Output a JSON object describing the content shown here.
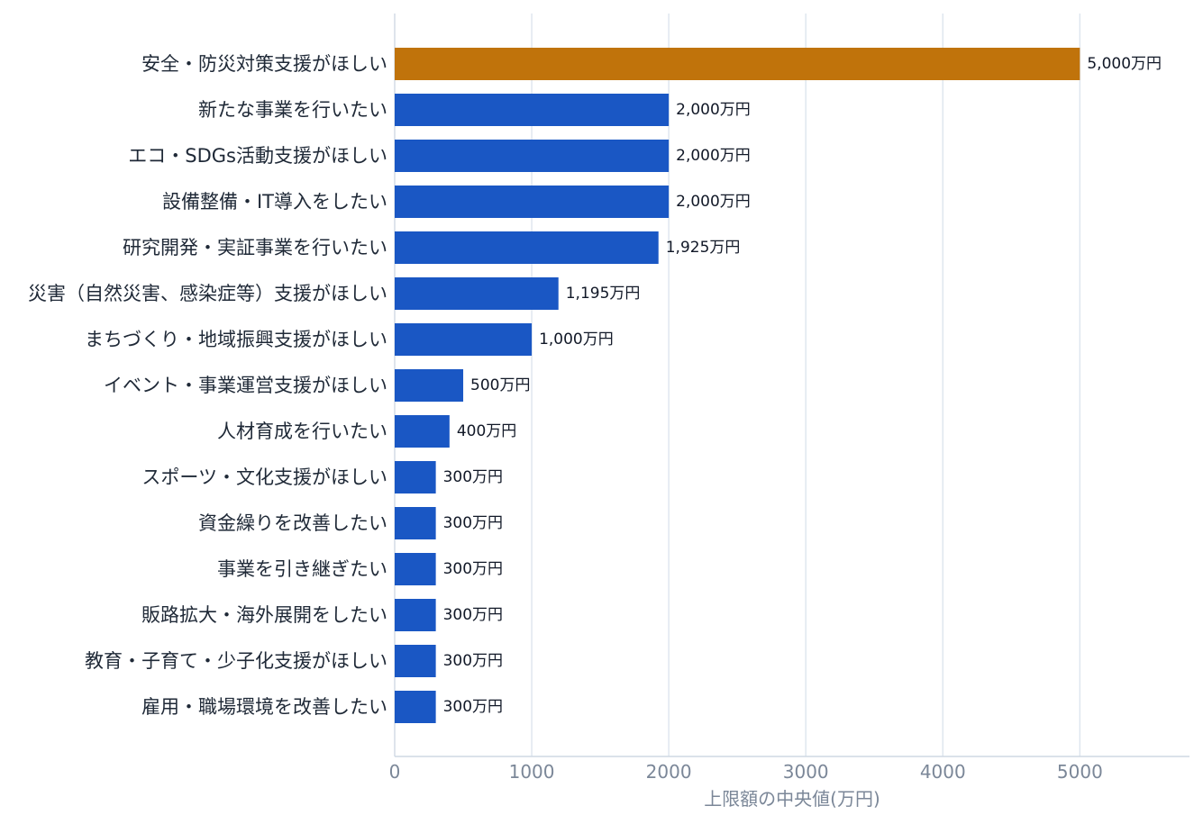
{
  "chart_data": {
    "type": "bar",
    "orientation": "horizontal",
    "categories": [
      "安全・防災対策支援がほしい",
      "新たな事業を行いたい",
      "エコ・SDGs活動支援がほしい",
      "設備整備・IT導入をしたい",
      "研究開発・実証事業を行いたい",
      "災害（自然災害、感染症等）支援がほしい",
      "まちづくり・地域振興支援がほしい",
      "イベント・事業運営支援がほしい",
      "人材育成を行いたい",
      "スポーツ・文化支援がほしい",
      "資金繰りを改善したい",
      "事業を引き継ぎたい",
      "販路拡大・海外展開をしたい",
      "教育・子育て・少子化支援がほしい",
      "雇用・職場環境を改善したい"
    ],
    "values": [
      5000,
      2000,
      2000,
      2000,
      1925,
      1195,
      1000,
      500,
      400,
      300,
      300,
      300,
      300,
      300,
      300
    ],
    "value_labels": [
      "5,000万円",
      "2,000万円",
      "2,000万円",
      "2,000万円",
      "1,925万円",
      "1,195万円",
      "1,000万円",
      "500万円",
      "400万円",
      "300万円",
      "300万円",
      "300万円",
      "300万円",
      "300万円",
      "300万円"
    ],
    "highlight_index": 0,
    "colors": {
      "highlight": "#c0730b",
      "default": "#1a57c4"
    },
    "title": "",
    "xlabel": "上限額の中央値(万円)",
    "ylabel": "",
    "xlim": [
      0,
      5800
    ],
    "xticks": [
      0,
      1000,
      2000,
      3000,
      4000,
      5000
    ],
    "xtick_labels": [
      "0",
      "1000",
      "2000",
      "3000",
      "4000",
      "5000"
    ],
    "grid": true,
    "legend": "none"
  }
}
